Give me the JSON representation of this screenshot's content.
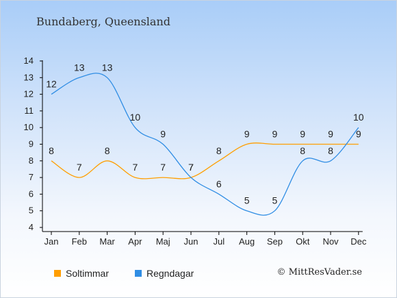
{
  "place_title": "Bundaberg, Queensland",
  "credit": "© MittResVader.se",
  "colors": {
    "sun": "#ff9e00",
    "rain": "#2f8de4",
    "axis": "#000000",
    "label": "#222222"
  },
  "chart_data": {
    "type": "line",
    "categories": [
      "Jan",
      "Feb",
      "Mar",
      "Apr",
      "Maj",
      "Jun",
      "Jul",
      "Aug",
      "Sep",
      "Okt",
      "Nov",
      "Dec"
    ],
    "yticks": [
      4,
      5,
      6,
      7,
      8,
      9,
      10,
      11,
      12,
      13,
      14
    ],
    "ylim": [
      4,
      14
    ],
    "grid": false,
    "legend_position": "bottom-left",
    "series": [
      {
        "name": "Soltimmar",
        "color": "#ff9e00",
        "values": [
          8,
          7,
          8,
          7,
          7,
          7,
          8,
          9,
          9,
          9,
          9,
          9
        ]
      },
      {
        "name": "Regndagar",
        "color": "#2f8de4",
        "values": [
          12,
          13,
          13,
          10,
          9,
          7,
          6,
          5,
          5,
          8,
          8,
          10
        ]
      }
    ]
  }
}
